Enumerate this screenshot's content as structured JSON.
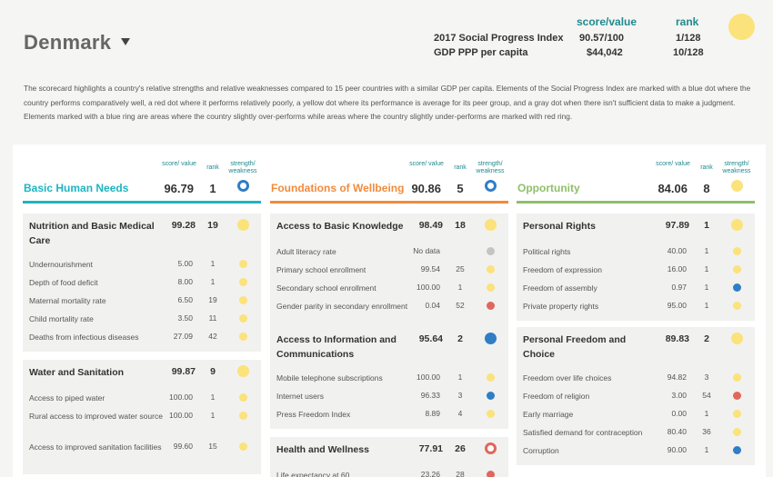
{
  "colors": {
    "yellow": "#fbe27a",
    "blue": "#2f7ec6",
    "red": "#e0675e",
    "gray": "#c4c4c4",
    "teal": "#1cb5c1",
    "orange": "#f28b3c",
    "green": "#8fbf6a"
  },
  "header": {
    "country": "Denmark",
    "col_score": "score/value",
    "col_rank": "rank",
    "spi_label": "2017 Social Progress Index",
    "spi_score": "90.57/100",
    "spi_rank": "1/128",
    "gdp_label": "GDP PPP per capita",
    "gdp_value": "$44,042",
    "gdp_rank": "10/128"
  },
  "description": "The scorecard highlights a country's relative strengths and relative weaknesses compared to 15 peer countries with a similar GDP per capita. Elements of the Social Progress Index are marked with a blue dot where the country performs comparatively well, a red dot where it performs relatively poorly, a yellow dot where its performance is average for its peer group, and a gray dot when there isn't sufficient data to make a judgment. Elements marked with a blue ring are areas where the country slightly over-performs while areas where the country slightly under-performs are marked with red ring.",
  "col_headers": {
    "score": "score/ value",
    "rank": "rank",
    "strength": "strength/ weakness"
  },
  "dimensions": [
    {
      "title": "Basic Human Needs",
      "score": "96.79",
      "rank": "1",
      "marker": "blue-ring",
      "cards": [
        {
          "title": "Nutrition and Basic Medical Care",
          "score": "99.28",
          "rank": "19",
          "marker": "yellow",
          "rows": [
            {
              "label": "Undernourishment",
              "value": "5.00",
              "rank": "1",
              "marker": "yellow"
            },
            {
              "label": "Depth of food deficit",
              "value": "8.00",
              "rank": "1",
              "marker": "yellow"
            },
            {
              "label": "Maternal mortality rate",
              "value": "6.50",
              "rank": "19",
              "marker": "yellow"
            },
            {
              "label": "Child mortality rate",
              "value": "3.50",
              "rank": "11",
              "marker": "yellow"
            },
            {
              "label": "Deaths from infectious diseases",
              "value": "27.09",
              "rank": "42",
              "marker": "yellow"
            }
          ]
        },
        {
          "title": "Water and Sanitation",
          "score": "99.87",
          "rank": "9",
          "marker": "yellow",
          "rows": [
            {
              "label": "Access to piped water",
              "value": "100.00",
              "rank": "1",
              "marker": "yellow"
            },
            {
              "label": "Rural access to improved water source",
              "value": "100.00",
              "rank": "1",
              "marker": "yellow"
            },
            {
              "label": "Access to improved sanitation facilities",
              "value": "99.60",
              "rank": "15",
              "marker": "yellow"
            }
          ]
        }
      ]
    },
    {
      "title": "Foundations of Wellbeing",
      "score": "90.86",
      "rank": "5",
      "marker": "blue-ring",
      "cards": [
        {
          "title": "Access to Basic Knowledge",
          "score": "98.49",
          "rank": "18",
          "marker": "yellow",
          "rows": [
            {
              "label": "Adult literacy rate",
              "value": "No data",
              "rank": "",
              "marker": "gray"
            },
            {
              "label": "Primary school enrollment",
              "value": "99.54",
              "rank": "25",
              "marker": "yellow"
            },
            {
              "label": "Secondary school enrollment",
              "value": "100.00",
              "rank": "1",
              "marker": "yellow"
            },
            {
              "label": "Gender parity in secondary enrollment",
              "value": "0.04",
              "rank": "52",
              "marker": "red"
            }
          ]
        },
        {
          "title": "Access to Information and Communications",
          "score": "95.64",
          "rank": "2",
          "marker": "blue",
          "rows": [
            {
              "label": "Mobile telephone subscriptions",
              "value": "100.00",
              "rank": "1",
              "marker": "yellow"
            },
            {
              "label": "Internet users",
              "value": "96.33",
              "rank": "3",
              "marker": "blue"
            },
            {
              "label": "Press Freedom Index",
              "value": "8.89",
              "rank": "4",
              "marker": "yellow"
            }
          ]
        },
        {
          "title": "Health and Wellness",
          "score": "77.91",
          "rank": "26",
          "marker": "red-ring",
          "rows": [
            {
              "label": "Life expectancy at 60",
              "value": "23.26",
              "rank": "28",
              "marker": "red"
            }
          ]
        }
      ]
    },
    {
      "title": "Opportunity",
      "score": "84.06",
      "rank": "8",
      "marker": "yellow",
      "cards": [
        {
          "title": "Personal Rights",
          "score": "97.89",
          "rank": "1",
          "marker": "yellow",
          "rows": [
            {
              "label": "Political rights",
              "value": "40.00",
              "rank": "1",
              "marker": "yellow"
            },
            {
              "label": "Freedom of expression",
              "value": "16.00",
              "rank": "1",
              "marker": "yellow"
            },
            {
              "label": "Freedom of assembly",
              "value": "0.97",
              "rank": "1",
              "marker": "blue"
            },
            {
              "label": "Private property rights",
              "value": "95.00",
              "rank": "1",
              "marker": "yellow"
            }
          ]
        },
        {
          "title": "Personal Freedom and Choice",
          "score": "89.83",
          "rank": "2",
          "marker": "yellow",
          "rows": [
            {
              "label": "Freedom over life choices",
              "value": "94.82",
              "rank": "3",
              "marker": "yellow"
            },
            {
              "label": "Freedom of religion",
              "value": "3.00",
              "rank": "54",
              "marker": "red"
            },
            {
              "label": "Early marriage",
              "value": "0.00",
              "rank": "1",
              "marker": "yellow"
            },
            {
              "label": "Satisfied demand for contraception",
              "value": "80.40",
              "rank": "36",
              "marker": "yellow"
            },
            {
              "label": "Corruption",
              "value": "90.00",
              "rank": "1",
              "marker": "blue"
            }
          ]
        }
      ]
    }
  ]
}
